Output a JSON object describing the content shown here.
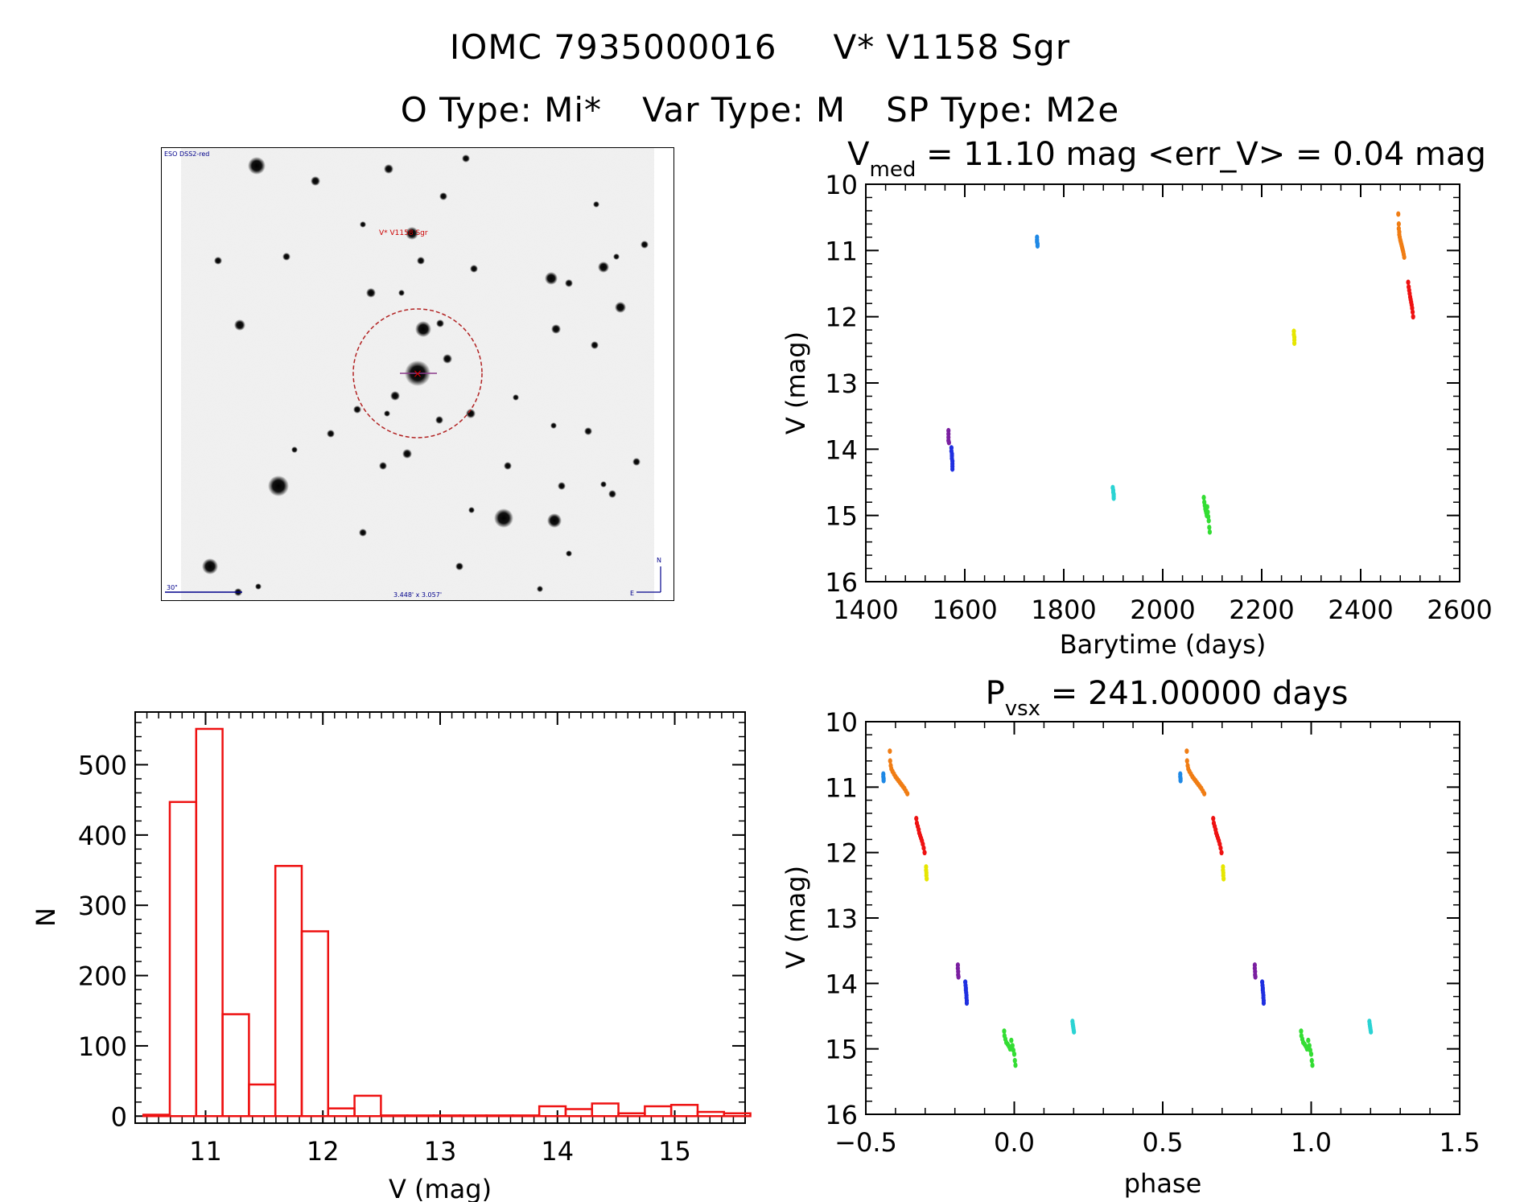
{
  "title": {
    "object_id": "IOMC 7935000016",
    "star_name": "V* V1158 Sgr",
    "o_type": "O Type: Mi*",
    "var_type": "Var Type: M",
    "sp_type": "SP Type: M2e"
  },
  "cutout": {
    "survey_label": "ESO DSS2-red",
    "star_label": "V* V1158 Sgr",
    "scale_label": "30\"",
    "size_label": "3.448' x 3.057'",
    "compass_n": "N",
    "compass_e": "E",
    "colors": {
      "background": "#f1f1f1",
      "circle": "#b22222",
      "label": "#cc0000",
      "meta": "#00008b"
    }
  },
  "chart_data": [
    {
      "id": "lightcurve",
      "type": "scatter",
      "title_main": "V",
      "title_sub": "med",
      "title_rest": " = 11.10 mag <err_V> = 0.04 mag",
      "xlabel": "Barytime (days)",
      "ylabel": "V (mag)",
      "xlim": [
        1400,
        2600
      ],
      "ylim": [
        16,
        10
      ],
      "y_inverted": true,
      "xticks": [
        1400,
        1600,
        1800,
        2000,
        2200,
        2400,
        2600
      ],
      "yticks": [
        10,
        11,
        12,
        13,
        14,
        15,
        16
      ],
      "series": [
        {
          "color": "#7a1fa0",
          "x": [
            1567,
            1567,
            1567,
            1567,
            1568
          ],
          "y": [
            13.72,
            13.77,
            13.82,
            13.87,
            13.9
          ]
        },
        {
          "color": "#1f2fe0",
          "x": [
            1573,
            1573,
            1574,
            1574,
            1574,
            1575,
            1575,
            1575,
            1575
          ],
          "y": [
            13.98,
            14.03,
            14.07,
            14.1,
            14.14,
            14.18,
            14.22,
            14.26,
            14.3
          ]
        },
        {
          "color": "#1e88e5",
          "x": [
            1746,
            1746,
            1746,
            1747,
            1747
          ],
          "y": [
            10.8,
            10.84,
            10.87,
            10.9,
            10.93
          ]
        },
        {
          "color": "#2ad3d3",
          "x": [
            1899,
            1900,
            1900,
            1901,
            1901,
            1901
          ],
          "y": [
            14.58,
            14.62,
            14.65,
            14.68,
            14.71,
            14.74
          ]
        },
        {
          "color": "#33dd33",
          "x": [
            2083,
            2084,
            2085,
            2086,
            2087,
            2088,
            2089,
            2090,
            2091,
            2092,
            2093,
            2094,
            2095
          ],
          "y": [
            14.73,
            14.8,
            14.85,
            14.9,
            14.93,
            14.96,
            15.0,
            14.87,
            14.95,
            15.02,
            15.08,
            15.18,
            15.25
          ]
        },
        {
          "color": "#e6e600",
          "x": [
            2265,
            2265,
            2266,
            2266,
            2266
          ],
          "y": [
            12.22,
            12.27,
            12.31,
            12.35,
            12.4
          ]
        },
        {
          "color": "#f07d14",
          "x": [
            2476,
            2477,
            2477,
            2478,
            2478,
            2479,
            2480,
            2481,
            2482,
            2483,
            2484,
            2485,
            2486,
            2487,
            2488
          ],
          "y": [
            10.45,
            10.6,
            10.67,
            10.72,
            10.76,
            10.8,
            10.84,
            10.87,
            10.9,
            10.93,
            10.96,
            10.99,
            11.02,
            11.06,
            11.1
          ]
        },
        {
          "color": "#ee1111",
          "x": [
            2496,
            2497,
            2498,
            2499,
            2500,
            2501,
            2502,
            2503,
            2504,
            2505,
            2506
          ],
          "y": [
            11.48,
            11.55,
            11.6,
            11.65,
            11.7,
            11.74,
            11.78,
            11.82,
            11.87,
            11.93,
            12.0
          ]
        }
      ]
    },
    {
      "id": "histogram",
      "type": "bar",
      "xlabel": "V (mag)",
      "ylabel": "N",
      "xlim": [
        10.4,
        15.6
      ],
      "ylim": [
        -10,
        575
      ],
      "xticks": [
        11,
        12,
        13,
        14,
        15
      ],
      "yticks": [
        0,
        100,
        200,
        300,
        400,
        500
      ],
      "bin_width": 0.225,
      "bin_start": 10.47,
      "values": [
        2,
        447,
        551,
        145,
        45,
        356,
        263,
        11,
        29,
        1,
        1,
        1,
        1,
        1,
        1,
        14,
        10,
        18,
        4,
        14,
        16,
        6,
        4
      ],
      "color": "#ee1111"
    },
    {
      "id": "phased",
      "type": "scatter",
      "title_main": "P",
      "title_sub": "vsx",
      "title_rest": " = 241.00000 days",
      "xlabel": "phase",
      "ylabel": "V (mag)",
      "xlim": [
        -0.5,
        1.5
      ],
      "ylim": [
        16,
        10
      ],
      "y_inverted": true,
      "xticks": [
        -0.5,
        0.0,
        0.5,
        1.0,
        1.5
      ],
      "yticks": [
        10,
        11,
        12,
        13,
        14,
        15,
        16
      ],
      "series": [
        {
          "color": "#1e88e5",
          "x": [
            -0.441,
            -0.441,
            -0.44,
            -0.44
          ],
          "y": [
            10.8,
            10.84,
            10.87,
            10.9
          ]
        },
        {
          "color": "#f07d14",
          "x": [
            -0.419,
            -0.418,
            -0.416,
            -0.414,
            -0.41,
            -0.405,
            -0.4,
            -0.395,
            -0.39,
            -0.385,
            -0.38,
            -0.375,
            -0.37,
            -0.365,
            -0.36
          ],
          "y": [
            10.45,
            10.6,
            10.67,
            10.72,
            10.76,
            10.8,
            10.84,
            10.87,
            10.9,
            10.93,
            10.96,
            10.99,
            11.02,
            11.06,
            11.1
          ]
        },
        {
          "color": "#ee1111",
          "x": [
            -0.33,
            -0.328,
            -0.325,
            -0.322,
            -0.32,
            -0.317,
            -0.314,
            -0.311,
            -0.308,
            -0.305,
            -0.302
          ],
          "y": [
            11.48,
            11.55,
            11.6,
            11.65,
            11.7,
            11.74,
            11.78,
            11.82,
            11.87,
            11.93,
            12.0
          ]
        },
        {
          "color": "#e6e600",
          "x": [
            -0.297,
            -0.297,
            -0.296,
            -0.296,
            -0.295
          ],
          "y": [
            12.22,
            12.27,
            12.31,
            12.35,
            12.4
          ]
        },
        {
          "color": "#7a1fa0",
          "x": [
            -0.19,
            -0.19,
            -0.189,
            -0.189,
            -0.188
          ],
          "y": [
            13.72,
            13.77,
            13.82,
            13.87,
            13.9
          ]
        },
        {
          "color": "#1f2fe0",
          "x": [
            -0.165,
            -0.164,
            -0.163,
            -0.163,
            -0.162,
            -0.161,
            -0.161,
            -0.16,
            -0.16
          ],
          "y": [
            13.98,
            14.03,
            14.07,
            14.1,
            14.14,
            14.18,
            14.22,
            14.26,
            14.3
          ]
        },
        {
          "color": "#33dd33",
          "x": [
            -0.034,
            -0.033,
            -0.03,
            -0.027,
            -0.022,
            -0.018,
            -0.014,
            -0.01,
            -0.006,
            -0.003,
            0.0,
            0.002,
            0.004
          ],
          "y": [
            14.73,
            14.8,
            14.85,
            14.9,
            14.93,
            14.96,
            15.0,
            14.87,
            14.95,
            15.02,
            15.08,
            15.18,
            15.25
          ]
        },
        {
          "color": "#2ad3d3",
          "x": [
            0.196,
            0.197,
            0.198,
            0.199,
            0.2,
            0.201
          ],
          "y": [
            14.58,
            14.62,
            14.65,
            14.68,
            14.71,
            14.74
          ]
        },
        {
          "color": "#1e88e5",
          "x": [
            0.559,
            0.559,
            0.56,
            0.56
          ],
          "y": [
            10.8,
            10.84,
            10.87,
            10.9
          ]
        },
        {
          "color": "#f07d14",
          "x": [
            0.581,
            0.582,
            0.584,
            0.586,
            0.59,
            0.595,
            0.6,
            0.605,
            0.61,
            0.615,
            0.62,
            0.625,
            0.63,
            0.635,
            0.64
          ],
          "y": [
            10.45,
            10.6,
            10.67,
            10.72,
            10.76,
            10.8,
            10.84,
            10.87,
            10.9,
            10.93,
            10.96,
            10.99,
            11.02,
            11.06,
            11.1
          ]
        },
        {
          "color": "#ee1111",
          "x": [
            0.67,
            0.672,
            0.675,
            0.678,
            0.68,
            0.683,
            0.686,
            0.689,
            0.692,
            0.695,
            0.698
          ],
          "y": [
            11.48,
            11.55,
            11.6,
            11.65,
            11.7,
            11.74,
            11.78,
            11.82,
            11.87,
            11.93,
            12.0
          ]
        },
        {
          "color": "#e6e600",
          "x": [
            0.703,
            0.703,
            0.704,
            0.704,
            0.705
          ],
          "y": [
            12.22,
            12.27,
            12.31,
            12.35,
            12.4
          ]
        },
        {
          "color": "#7a1fa0",
          "x": [
            0.81,
            0.81,
            0.811,
            0.811,
            0.812
          ],
          "y": [
            13.72,
            13.77,
            13.82,
            13.87,
            13.9
          ]
        },
        {
          "color": "#1f2fe0",
          "x": [
            0.835,
            0.836,
            0.837,
            0.837,
            0.838,
            0.839,
            0.839,
            0.84,
            0.84
          ],
          "y": [
            13.98,
            14.03,
            14.07,
            14.1,
            14.14,
            14.18,
            14.22,
            14.26,
            14.3
          ]
        },
        {
          "color": "#33dd33",
          "x": [
            0.966,
            0.967,
            0.97,
            0.973,
            0.978,
            0.982,
            0.986,
            0.99,
            0.994,
            0.997,
            1.0,
            1.002,
            1.004
          ],
          "y": [
            14.73,
            14.8,
            14.85,
            14.9,
            14.93,
            14.96,
            15.0,
            14.87,
            14.95,
            15.02,
            15.08,
            15.18,
            15.25
          ]
        },
        {
          "color": "#2ad3d3",
          "x": [
            1.196,
            1.197,
            1.198,
            1.199,
            1.2,
            1.201
          ],
          "y": [
            14.58,
            14.62,
            14.65,
            14.68,
            14.71,
            14.74
          ]
        }
      ]
    }
  ]
}
